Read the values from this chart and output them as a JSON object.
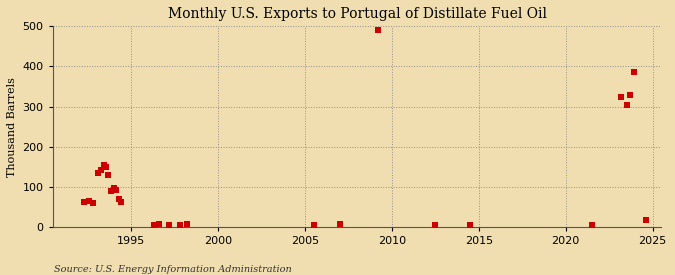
{
  "title": "Monthly U.S. Exports to Portugal of Distillate Fuel Oil",
  "ylabel": "Thousand Barrels",
  "source": "Source: U.S. Energy Information Administration",
  "background_color": "#f0deb0",
  "plot_background_color": "#f0deb0",
  "marker_color": "#cc0000",
  "marker_size": 25,
  "xlim": [
    1990.5,
    2025.5
  ],
  "ylim": [
    0,
    500
  ],
  "yticks": [
    0,
    100,
    200,
    300,
    400,
    500
  ],
  "xticks": [
    1995,
    2000,
    2005,
    2010,
    2015,
    2020,
    2025
  ],
  "data_x": [
    1992.3,
    1992.6,
    1992.8,
    1993.1,
    1993.3,
    1993.45,
    1993.55,
    1993.7,
    1993.85,
    1994.0,
    1994.15,
    1994.3,
    1994.45,
    1996.3,
    1996.6,
    1997.2,
    1997.8,
    1998.2,
    2005.5,
    2007.0,
    2009.2,
    2012.5,
    2014.5,
    2021.5,
    2023.2,
    2023.5,
    2023.7,
    2023.9,
    2024.6
  ],
  "data_y": [
    63,
    65,
    60,
    135,
    143,
    155,
    150,
    130,
    90,
    98,
    93,
    70,
    62,
    5,
    8,
    5,
    5,
    8,
    5,
    8,
    490,
    5,
    5,
    5,
    325,
    305,
    330,
    385,
    18
  ]
}
